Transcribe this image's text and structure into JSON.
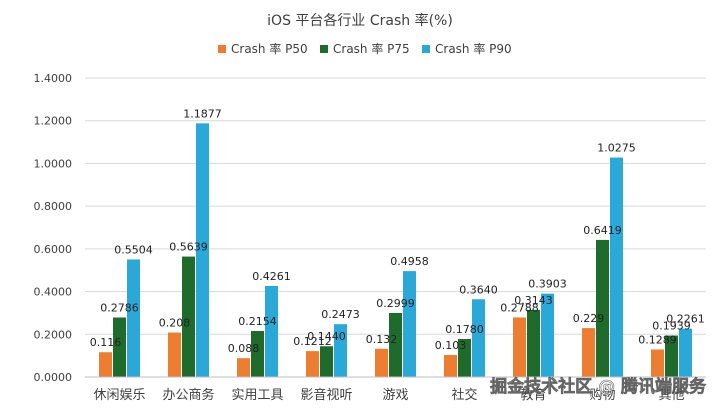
{
  "chart_data": {
    "type": "bar",
    "title": "iOS 平台各行业 Crash 率(%)",
    "categories": [
      "休闲娱乐",
      "办公商务",
      "实用工具",
      "影音视听",
      "游戏",
      "社交",
      "教育",
      "购物",
      "其他"
    ],
    "series": [
      {
        "name": "Crash 率 P50",
        "color": "#ED7D31",
        "values": [
          0.116,
          0.208,
          0.088,
          0.1212,
          0.132,
          0.103,
          0.2788,
          0.229,
          0.1289
        ],
        "labels": [
          "0.116",
          "0.208",
          "0.088",
          "0.1212",
          "0.132",
          "0.103",
          "0.2788",
          "0.229",
          "0.1289"
        ]
      },
      {
        "name": "Crash 率 P75",
        "color": "#1E6B2C",
        "values": [
          0.2786,
          0.5639,
          0.2154,
          0.144,
          0.2999,
          0.178,
          0.3143,
          0.6419,
          0.1939
        ],
        "labels": [
          "0.2786",
          "0.5639",
          "0.2154",
          "0.1440",
          "0.2999",
          "0.1780",
          "0.3143",
          "0.6419",
          "0.1939"
        ]
      },
      {
        "name": "Crash 率 P90",
        "color": "#2AA8D8",
        "values": [
          0.5504,
          1.1877,
          0.4261,
          0.2473,
          0.4958,
          0.364,
          0.3903,
          1.0275,
          0.2261
        ],
        "labels": [
          "0.5504",
          "1.1877",
          "0.4261",
          "0.2473",
          "0.4958",
          "0.3640",
          "0.3903",
          "1.0275",
          "0.2261"
        ]
      }
    ],
    "ylim": [
      0,
      1.4
    ],
    "yticks": [
      "0.0000",
      "0.2000",
      "0.4000",
      "0.6000",
      "0.8000",
      "1.0000",
      "1.2000",
      "1.4000"
    ],
    "grid": true,
    "legend": "top-center"
  },
  "watermark": "掘金技术社区 @ 腾讯端服务",
  "colors": {
    "grid": "#D9D9D9",
    "text": "#404040"
  }
}
